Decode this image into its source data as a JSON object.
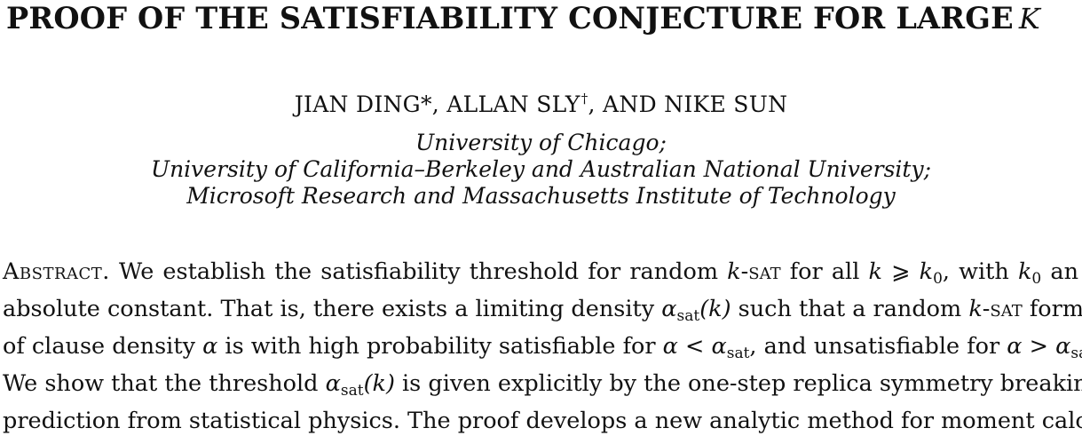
{
  "paper": {
    "title": "PROOF OF THE SATISFIABILITY CONJECTURE FOR LARGE",
    "title_var": "K",
    "authors": {
      "a1": "JIAN DING",
      "a1_mark": "*",
      "sep1": ", ",
      "a2": "ALLAN SLY",
      "a2_mark": "†",
      "sep2": ", AND ",
      "a3": "NIKE SUN"
    },
    "affiliations": [
      "University of Chicago;",
      "University of California–Berkeley and Australian National University;",
      "Microsoft Research and Massachusetts Institute of Technology"
    ],
    "abstract": {
      "heading": "Abstract.",
      "l1": {
        "t1": " We establish the satisfiability threshold for random ",
        "k1": "k",
        "sat1": "-sat",
        "t2": " for all ",
        "k2": "k",
        "ge": " ⩾ ",
        "k3": "k",
        "zero1": "0",
        "t3": ", with ",
        "k4": "k",
        "zero2": "0",
        "t4": " an"
      },
      "l2": {
        "t1": "absolute constant. That is, there exists a limiting density ",
        "alpha": "α",
        "sub": "sat",
        "paren": "(k)",
        "t2": " such that a random ",
        "k": "k",
        "sat": "-sat",
        "t3": " formula"
      },
      "l3": {
        "t1": "of clause density ",
        "alpha1": "α",
        "t2": " is with high probability satisfiable for ",
        "alpha2": "α",
        "lt": " < ",
        "alpha3": "α",
        "sub1": "sat",
        "t3": ", and unsatisfiable for ",
        "alpha4": "α",
        "gt": " > ",
        "alpha5": "α",
        "sub2": "sat",
        "t4": "."
      },
      "l4": {
        "t1": "We show that the threshold ",
        "alpha": "α",
        "sub": "sat",
        "paren": "(k)",
        "t2": " is given explicitly by the one-step replica symmetry breaking"
      },
      "l5": "prediction from statistical physics. The proof develops a new analytic method for moment calcu-"
    }
  }
}
